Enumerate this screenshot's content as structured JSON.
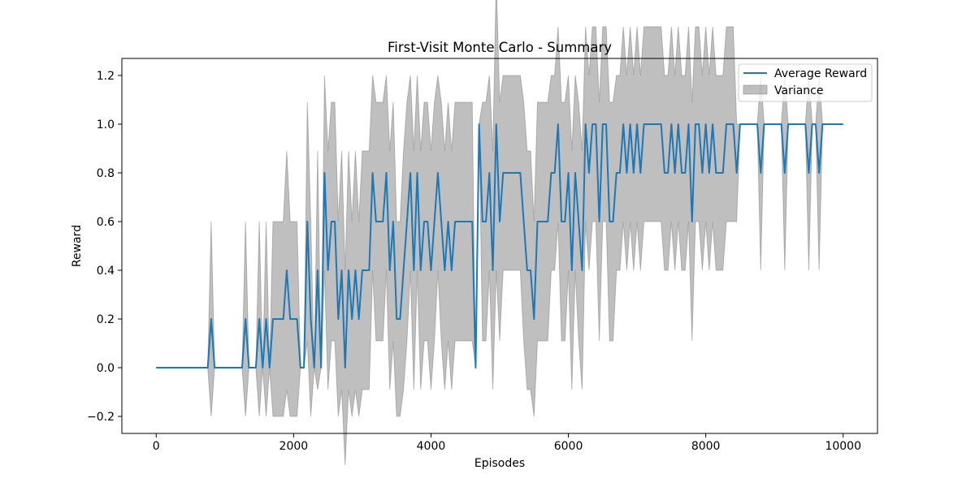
{
  "chart_data": {
    "type": "line",
    "title": "First-Visit Monte Carlo - Summary",
    "xlabel": "Episodes",
    "ylabel": "Reward",
    "xlim": [
      -500,
      10500
    ],
    "ylim": [
      -0.27,
      1.27
    ],
    "x_ticks": [
      0,
      2000,
      4000,
      6000,
      8000,
      10000
    ],
    "x_tick_labels": [
      "0",
      "2000",
      "4000",
      "6000",
      "8000",
      "10000"
    ],
    "y_ticks": [
      -0.2,
      0.0,
      0.2,
      0.4,
      0.6,
      0.8,
      1.0,
      1.2
    ],
    "y_tick_labels": [
      "−0.2",
      "0.0",
      "0.2",
      "0.4",
      "0.6",
      "0.8",
      "1.0",
      "1.2"
    ],
    "grid": false,
    "legend_position": "top-right",
    "series": [
      {
        "name": "Average Reward",
        "color": "#1f77b4",
        "kind": "line"
      },
      {
        "name": "Variance",
        "color": "#808080",
        "kind": "band",
        "alpha": 0.5
      }
    ],
    "step": 50,
    "data": [
      [
        0,
        0,
        0
      ],
      [
        50,
        0,
        0
      ],
      [
        100,
        0,
        0
      ],
      [
        150,
        0,
        0
      ],
      [
        200,
        0,
        0
      ],
      [
        250,
        0,
        0
      ],
      [
        300,
        0,
        0
      ],
      [
        350,
        0,
        0
      ],
      [
        400,
        0,
        0
      ],
      [
        450,
        0,
        0
      ],
      [
        500,
        0,
        0
      ],
      [
        550,
        0,
        0
      ],
      [
        600,
        0,
        0
      ],
      [
        650,
        0,
        0
      ],
      [
        700,
        0,
        0
      ],
      [
        750,
        0,
        0
      ],
      [
        800,
        0.2,
        0.4
      ],
      [
        850,
        0,
        0
      ],
      [
        900,
        0,
        0
      ],
      [
        950,
        0,
        0
      ],
      [
        1000,
        0,
        0
      ],
      [
        1050,
        0,
        0
      ],
      [
        1100,
        0,
        0
      ],
      [
        1150,
        0,
        0
      ],
      [
        1200,
        0,
        0
      ],
      [
        1250,
        0,
        0
      ],
      [
        1300,
        0.2,
        0.4
      ],
      [
        1350,
        0,
        0
      ],
      [
        1400,
        0,
        0
      ],
      [
        1450,
        0,
        0
      ],
      [
        1500,
        0.2,
        0.4
      ],
      [
        1550,
        0,
        0
      ],
      [
        1600,
        0.2,
        0.4
      ],
      [
        1650,
        0,
        0
      ],
      [
        1700,
        0.2,
        0.4
      ],
      [
        1750,
        0.2,
        0.4
      ],
      [
        1800,
        0.2,
        0.4
      ],
      [
        1850,
        0.2,
        0.4
      ],
      [
        1900,
        0.4,
        0.49
      ],
      [
        1950,
        0.2,
        0.4
      ],
      [
        2000,
        0.2,
        0.4
      ],
      [
        2050,
        0.2,
        0.4
      ],
      [
        2100,
        0,
        0
      ],
      [
        2150,
        0,
        0
      ],
      [
        2200,
        0.6,
        0.49
      ],
      [
        2250,
        0.2,
        0.4
      ],
      [
        2300,
        0,
        0
      ],
      [
        2350,
        0.4,
        0.49
      ],
      [
        2400,
        0,
        0
      ],
      [
        2450,
        0.8,
        0.4
      ],
      [
        2500,
        0.4,
        0.49
      ],
      [
        2550,
        0.6,
        0.49
      ],
      [
        2600,
        0.6,
        0.49
      ],
      [
        2650,
        0.2,
        0.4
      ],
      [
        2700,
        0.4,
        0.49
      ],
      [
        2750,
        0,
        0.4
      ],
      [
        2800,
        0.4,
        0.49
      ],
      [
        2850,
        0.2,
        0.4
      ],
      [
        2900,
        0.4,
        0.49
      ],
      [
        2950,
        0.2,
        0.4
      ],
      [
        3000,
        0.4,
        0.49
      ],
      [
        3050,
        0.4,
        0.49
      ],
      [
        3100,
        0.4,
        0.49
      ],
      [
        3150,
        0.8,
        0.4
      ],
      [
        3200,
        0.6,
        0.49
      ],
      [
        3250,
        0.6,
        0.49
      ],
      [
        3300,
        0.6,
        0.49
      ],
      [
        3350,
        0.8,
        0.4
      ],
      [
        3400,
        0.4,
        0.49
      ],
      [
        3450,
        0.6,
        0.49
      ],
      [
        3500,
        0.2,
        0.4
      ],
      [
        3550,
        0.2,
        0.4
      ],
      [
        3600,
        0.4,
        0.49
      ],
      [
        3650,
        0.6,
        0.49
      ],
      [
        3700,
        0.8,
        0.4
      ],
      [
        3750,
        0.4,
        0.49
      ],
      [
        3800,
        0.8,
        0.4
      ],
      [
        3850,
        0.4,
        0.49
      ],
      [
        3900,
        0.6,
        0.49
      ],
      [
        3950,
        0.6,
        0.49
      ],
      [
        4000,
        0.4,
        0.49
      ],
      [
        4050,
        0.6,
        0.49
      ],
      [
        4100,
        0.8,
        0.4
      ],
      [
        4150,
        0.6,
        0.49
      ],
      [
        4200,
        0.4,
        0.49
      ],
      [
        4250,
        0.6,
        0.49
      ],
      [
        4300,
        0.4,
        0.49
      ],
      [
        4350,
        0.6,
        0.49
      ],
      [
        4400,
        0.6,
        0.49
      ],
      [
        4450,
        0.6,
        0.49
      ],
      [
        4500,
        0.6,
        0.49
      ],
      [
        4550,
        0.6,
        0.49
      ],
      [
        4600,
        0.6,
        0.49
      ],
      [
        4650,
        0,
        0
      ],
      [
        4700,
        1,
        0
      ],
      [
        4750,
        0.6,
        0.49
      ],
      [
        4800,
        0.6,
        0.49
      ],
      [
        4850,
        0.8,
        0.4
      ],
      [
        4900,
        0.4,
        0.49
      ],
      [
        4950,
        1,
        0.6
      ],
      [
        5000,
        0.6,
        0.49
      ],
      [
        5050,
        0.8,
        0.4
      ],
      [
        5100,
        0.8,
        0.4
      ],
      [
        5150,
        0.8,
        0.4
      ],
      [
        5200,
        0.8,
        0.4
      ],
      [
        5250,
        0.8,
        0.4
      ],
      [
        5300,
        0.8,
        0.4
      ],
      [
        5350,
        0.6,
        0.49
      ],
      [
        5400,
        0.4,
        0.49
      ],
      [
        5450,
        0.4,
        0.49
      ],
      [
        5500,
        0.2,
        0.4
      ],
      [
        5550,
        0.6,
        0.49
      ],
      [
        5600,
        0.6,
        0.49
      ],
      [
        5650,
        0.6,
        0.49
      ],
      [
        5700,
        0.6,
        0.49
      ],
      [
        5750,
        0.8,
        0.4
      ],
      [
        5800,
        0.8,
        0.4
      ],
      [
        5850,
        1,
        0.4
      ],
      [
        5900,
        0.6,
        0.49
      ],
      [
        5950,
        0.6,
        0.49
      ],
      [
        6000,
        0.8,
        0.4
      ],
      [
        6050,
        0.4,
        0.49
      ],
      [
        6100,
        0.8,
        0.4
      ],
      [
        6150,
        0.6,
        0.49
      ],
      [
        6200,
        0.4,
        0.49
      ],
      [
        6250,
        1,
        0.4
      ],
      [
        6300,
        0.8,
        0.4
      ],
      [
        6350,
        1,
        0.4
      ],
      [
        6400,
        1,
        0.4
      ],
      [
        6450,
        0.6,
        0.49
      ],
      [
        6500,
        1,
        0.4
      ],
      [
        6550,
        1,
        0.4
      ],
      [
        6600,
        0.6,
        0.49
      ],
      [
        6650,
        0.6,
        0.49
      ],
      [
        6700,
        0.8,
        0.4
      ],
      [
        6750,
        0.8,
        0.4
      ],
      [
        6800,
        1,
        0.4
      ],
      [
        6850,
        0.8,
        0.4
      ],
      [
        6900,
        1,
        0.4
      ],
      [
        6950,
        0.8,
        0.4
      ],
      [
        7000,
        1,
        0.4
      ],
      [
        7050,
        0.8,
        0.4
      ],
      [
        7100,
        1,
        0.4
      ],
      [
        7150,
        1,
        0.4
      ],
      [
        7200,
        1,
        0.4
      ],
      [
        7250,
        1,
        0.4
      ],
      [
        7300,
        1,
        0.4
      ],
      [
        7350,
        1,
        0.4
      ],
      [
        7400,
        0.8,
        0.4
      ],
      [
        7450,
        0.8,
        0.4
      ],
      [
        7500,
        1,
        0.4
      ],
      [
        7550,
        0.8,
        0.4
      ],
      [
        7600,
        1,
        0.4
      ],
      [
        7650,
        0.8,
        0.4
      ],
      [
        7700,
        0.8,
        0.4
      ],
      [
        7750,
        1,
        0.4
      ],
      [
        7800,
        0.6,
        0.49
      ],
      [
        7850,
        1,
        0.4
      ],
      [
        7900,
        1,
        0.4
      ],
      [
        7950,
        0.8,
        0.4
      ],
      [
        8000,
        1,
        0.4
      ],
      [
        8050,
        0.8,
        0.4
      ],
      [
        8100,
        1,
        0.4
      ],
      [
        8150,
        0.8,
        0.4
      ],
      [
        8200,
        0.8,
        0.4
      ],
      [
        8250,
        0.8,
        0.4
      ],
      [
        8300,
        1,
        0.4
      ],
      [
        8350,
        1,
        0.4
      ],
      [
        8400,
        1,
        0.4
      ],
      [
        8450,
        0.8,
        0.2
      ],
      [
        8500,
        1,
        0
      ],
      [
        8550,
        1,
        0
      ],
      [
        8600,
        1,
        0
      ],
      [
        8650,
        1,
        0
      ],
      [
        8700,
        1,
        0
      ],
      [
        8750,
        1,
        0
      ],
      [
        8800,
        0.8,
        0.4
      ],
      [
        8850,
        1,
        0
      ],
      [
        8900,
        1,
        0
      ],
      [
        8950,
        1,
        0
      ],
      [
        9000,
        1,
        0
      ],
      [
        9050,
        1,
        0
      ],
      [
        9100,
        1,
        0
      ],
      [
        9150,
        0.8,
        0.4
      ],
      [
        9200,
        1,
        0
      ],
      [
        9250,
        1,
        0
      ],
      [
        9300,
        1,
        0
      ],
      [
        9350,
        1,
        0
      ],
      [
        9400,
        1,
        0
      ],
      [
        9450,
        1,
        0
      ],
      [
        9500,
        0.8,
        0.4
      ],
      [
        9550,
        1,
        0
      ],
      [
        9600,
        1,
        0
      ],
      [
        9650,
        0.8,
        0.4
      ],
      [
        9700,
        1,
        0
      ],
      [
        9750,
        1,
        0
      ],
      [
        9800,
        1,
        0
      ],
      [
        9850,
        1,
        0
      ],
      [
        9900,
        1,
        0
      ],
      [
        9950,
        1,
        0
      ],
      [
        10000,
        1,
        0
      ]
    ]
  }
}
